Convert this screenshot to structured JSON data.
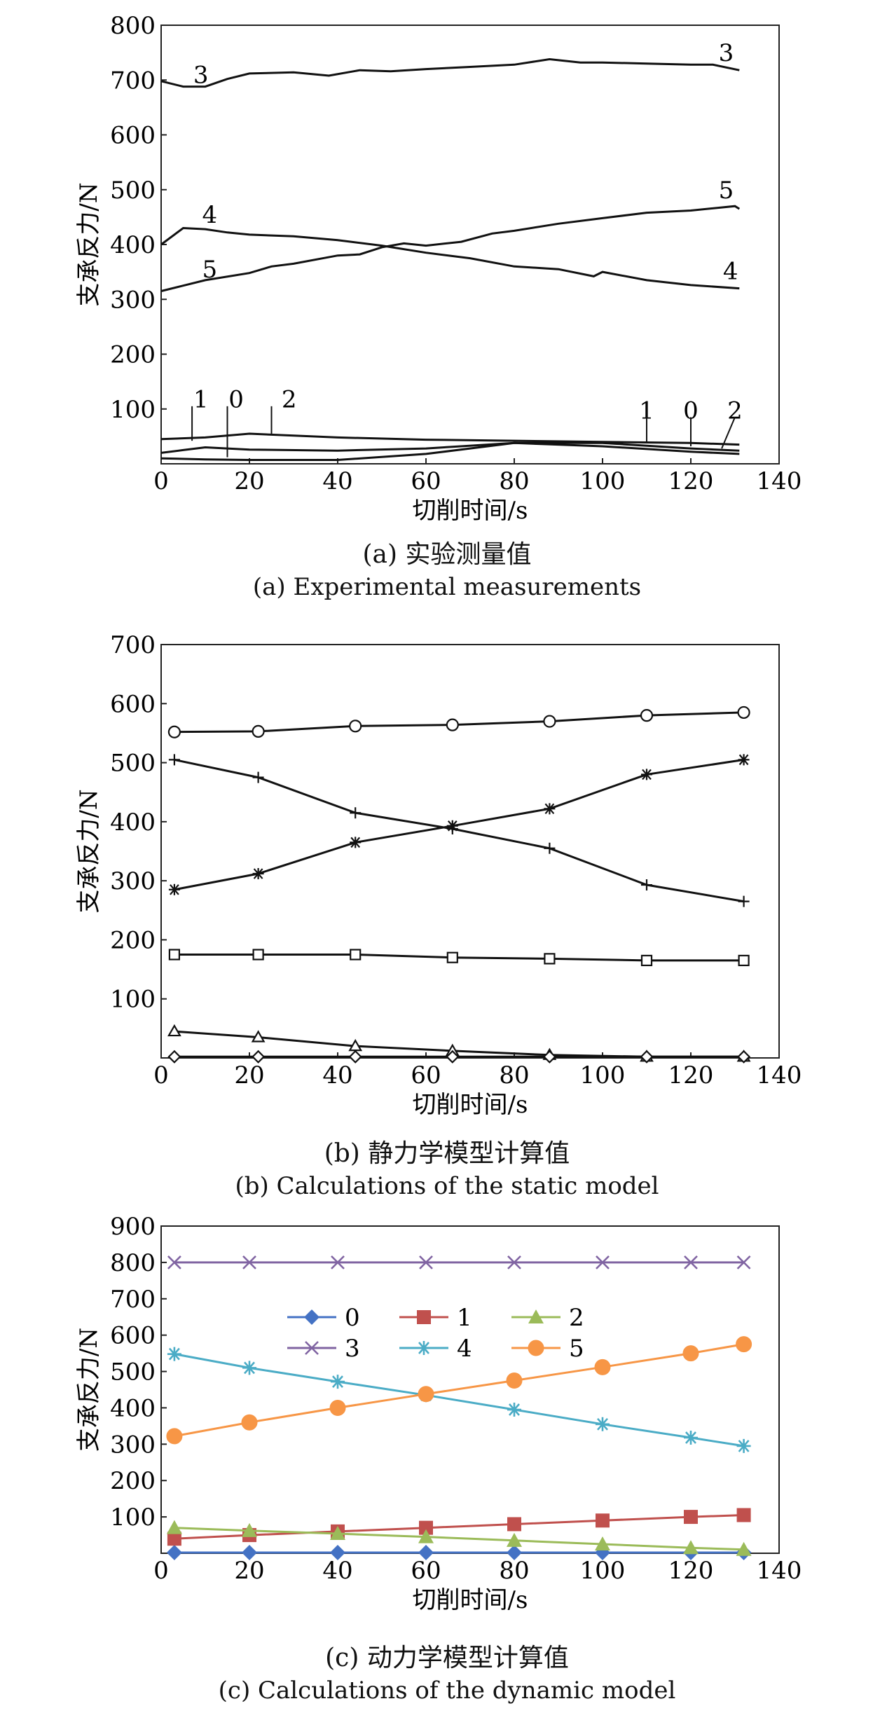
{
  "chart_data": [
    {
      "type": "line",
      "panel": "a",
      "xlabel": "切削时间/s",
      "ylabel": "支承反力/N",
      "caption_cn": "(a) 实验测量值",
      "caption_en": "(a) Experimental measurements",
      "xlim": [
        0,
        140
      ],
      "ylim": [
        0,
        800
      ],
      "xticks": [
        "0",
        "20",
        "40",
        "60",
        "80",
        "100",
        "120",
        "140"
      ],
      "yticks": [
        "100",
        "200",
        "300",
        "400",
        "500",
        "600",
        "700",
        "800"
      ],
      "grid": false,
      "legend": "curve labels on plot",
      "series": [
        {
          "name": "3",
          "x": [
            0,
            5,
            10,
            15,
            20,
            30,
            38,
            45,
            52,
            60,
            70,
            80,
            88,
            95,
            100,
            110,
            120,
            125,
            131
          ],
          "y": [
            698,
            688,
            688,
            702,
            712,
            714,
            708,
            718,
            716,
            720,
            724,
            728,
            738,
            732,
            732,
            730,
            728,
            728,
            718
          ]
        },
        {
          "name": "4",
          "x": [
            0,
            5,
            10,
            15,
            20,
            30,
            40,
            50,
            60,
            70,
            80,
            90,
            98,
            100,
            110,
            120,
            131
          ],
          "y": [
            400,
            430,
            428,
            422,
            418,
            415,
            408,
            398,
            385,
            375,
            360,
            355,
            342,
            350,
            335,
            326,
            320
          ]
        },
        {
          "name": "5",
          "x": [
            0,
            5,
            10,
            20,
            25,
            30,
            40,
            45,
            50,
            55,
            60,
            68,
            75,
            80,
            90,
            100,
            110,
            120,
            130,
            131
          ],
          "y": [
            315,
            325,
            335,
            348,
            360,
            365,
            380,
            382,
            395,
            402,
            398,
            405,
            420,
            425,
            438,
            448,
            458,
            462,
            470,
            465
          ]
        },
        {
          "name": "1",
          "x": [
            0,
            5,
            10,
            20,
            40,
            60,
            80,
            100,
            120,
            131
          ],
          "y": [
            20,
            25,
            30,
            26,
            24,
            28,
            38,
            38,
            28,
            24
          ]
        },
        {
          "name": "0",
          "x": [
            0,
            10,
            20,
            40,
            60,
            80,
            100,
            120,
            131
          ],
          "y": [
            10,
            8,
            7,
            7,
            18,
            38,
            32,
            22,
            18
          ]
        },
        {
          "name": "2",
          "x": [
            0,
            10,
            20,
            40,
            60,
            80,
            100,
            120,
            131
          ],
          "y": [
            45,
            48,
            55,
            48,
            44,
            42,
            40,
            38,
            35
          ]
        }
      ],
      "curve_labels": [
        {
          "text": "3",
          "x": 9,
          "y": 710
        },
        {
          "text": "3",
          "x": 128,
          "y": 750
        },
        {
          "text": "4",
          "x": 11,
          "y": 455
        },
        {
          "text": "4",
          "x": 129,
          "y": 352
        },
        {
          "text": "5",
          "x": 11,
          "y": 355
        },
        {
          "text": "5",
          "x": 128,
          "y": 500
        },
        {
          "text": "1",
          "x": 9,
          "y": 118
        },
        {
          "text": "0",
          "x": 17,
          "y": 118
        },
        {
          "text": "2",
          "x": 29,
          "y": 118
        },
        {
          "text": "1",
          "x": 110,
          "y": 98
        },
        {
          "text": "0",
          "x": 120,
          "y": 98
        },
        {
          "text": "2",
          "x": 130,
          "y": 98
        }
      ]
    },
    {
      "type": "line",
      "panel": "b",
      "xlabel": "切削时间/s",
      "ylabel": "支承反力/N",
      "caption_cn": "(b) 静力学模型计算值",
      "caption_en": "(b) Calculations of the static model",
      "xlim": [
        0,
        140
      ],
      "ylim": [
        0,
        700
      ],
      "xticks": [
        "0",
        "20",
        "40",
        "60",
        "80",
        "100",
        "120",
        "140"
      ],
      "yticks": [
        "100",
        "200",
        "300",
        "400",
        "500",
        "600",
        "700"
      ],
      "grid": false,
      "x": [
        3,
        22,
        44,
        66,
        88,
        110,
        132
      ],
      "series": [
        {
          "marker": "circle",
          "values": [
            552,
            553,
            562,
            564,
            570,
            580,
            585
          ]
        },
        {
          "marker": "plus",
          "values": [
            505,
            475,
            415,
            388,
            355,
            293,
            265
          ]
        },
        {
          "marker": "asterisk",
          "values": [
            285,
            312,
            365,
            393,
            422,
            480,
            505
          ]
        },
        {
          "marker": "square",
          "values": [
            175,
            175,
            175,
            170,
            168,
            165,
            165
          ]
        },
        {
          "marker": "triangle",
          "values": [
            45,
            35,
            20,
            12,
            5,
            2,
            2
          ]
        },
        {
          "marker": "diamond",
          "values": [
            2,
            2,
            2,
            2,
            2,
            2,
            2
          ]
        }
      ]
    },
    {
      "type": "line",
      "panel": "c",
      "xlabel": "切削时间/s",
      "ylabel": "支承反力/N",
      "caption_cn": "(c) 动力学模型计算值",
      "caption_en": "(c) Calculations of the dynamic model",
      "xlim": [
        0,
        140
      ],
      "ylim": [
        0,
        900
      ],
      "xticks": [
        "0",
        "20",
        "40",
        "60",
        "80",
        "100",
        "120",
        "140"
      ],
      "yticks": [
        "100",
        "200",
        "300",
        "400",
        "500",
        "600",
        "700",
        "800",
        "900"
      ],
      "grid": false,
      "legend": "upper-left inside plot, 3 columns",
      "x": [
        3,
        20,
        40,
        60,
        80,
        100,
        120,
        132
      ],
      "series": [
        {
          "name": "0",
          "marker": "diamond",
          "color": "#4472C4",
          "values": [
            2,
            2,
            2,
            2,
            2,
            2,
            2,
            2
          ]
        },
        {
          "name": "1",
          "marker": "square",
          "color": "#C0504D",
          "values": [
            40,
            50,
            60,
            70,
            80,
            90,
            100,
            105
          ]
        },
        {
          "name": "2",
          "marker": "triangle",
          "color": "#9BBB59",
          "values": [
            70,
            62,
            54,
            45,
            35,
            25,
            15,
            10
          ]
        },
        {
          "name": "3",
          "marker": "x",
          "color": "#8064A2",
          "values": [
            800,
            800,
            800,
            800,
            800,
            800,
            800,
            800
          ]
        },
        {
          "name": "4",
          "marker": "asterisk",
          "color": "#4BACC6",
          "values": [
            548,
            510,
            472,
            435,
            395,
            355,
            318,
            295
          ]
        },
        {
          "name": "5",
          "marker": "circle",
          "color": "#F79646",
          "values": [
            322,
            360,
            400,
            438,
            475,
            512,
            550,
            575
          ]
        }
      ]
    }
  ]
}
